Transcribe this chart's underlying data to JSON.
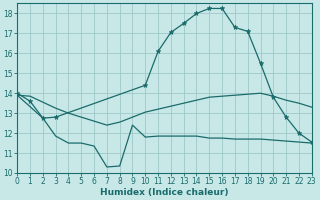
{
  "xlabel": "Humidex (Indice chaleur)",
  "bg_color": "#c8e8e8",
  "grid_color": "#a0c8c8",
  "line_color": "#1a6b6b",
  "xlim": [
    0,
    23
  ],
  "ylim": [
    10,
    18.5
  ],
  "xticks": [
    0,
    1,
    2,
    3,
    4,
    5,
    6,
    7,
    8,
    9,
    10,
    11,
    12,
    13,
    14,
    15,
    16,
    17,
    18,
    19,
    20,
    21,
    22,
    23
  ],
  "yticks": [
    10,
    11,
    12,
    13,
    14,
    15,
    16,
    17,
    18
  ],
  "line1_markers": {
    "x": [
      0,
      1,
      2,
      3,
      10,
      11,
      12,
      13,
      14,
      15,
      16,
      17,
      18,
      19,
      20,
      21,
      22,
      23
    ],
    "y": [
      14.0,
      13.6,
      12.75,
      12.8,
      14.4,
      16.1,
      17.05,
      17.5,
      18.0,
      18.25,
      18.25,
      17.3,
      17.1,
      15.5,
      13.8,
      12.8,
      12.0,
      11.55
    ]
  },
  "line2_lower": {
    "x": [
      0,
      2,
      3,
      4,
      5,
      6,
      7,
      8,
      9,
      10,
      11,
      12,
      13,
      14,
      15,
      16,
      17,
      18,
      19,
      20,
      21,
      22,
      23
    ],
    "y": [
      13.9,
      12.75,
      11.85,
      11.5,
      11.5,
      11.35,
      10.3,
      10.35,
      12.4,
      11.8,
      11.85,
      11.85,
      11.85,
      11.85,
      11.75,
      11.75,
      11.7,
      11.7,
      11.7,
      11.65,
      11.6,
      11.55,
      11.5
    ]
  },
  "line3_upper": {
    "x": [
      0,
      1,
      2,
      3,
      4,
      5,
      6,
      7,
      8,
      9,
      10,
      11,
      12,
      13,
      14,
      15,
      16,
      17,
      18,
      19,
      20,
      21,
      22,
      23
    ],
    "y": [
      13.9,
      13.85,
      13.55,
      13.25,
      13.0,
      12.8,
      12.6,
      12.4,
      12.55,
      12.8,
      13.05,
      13.2,
      13.35,
      13.5,
      13.65,
      13.8,
      13.85,
      13.9,
      13.95,
      14.0,
      13.85,
      13.65,
      13.5,
      13.3
    ]
  }
}
